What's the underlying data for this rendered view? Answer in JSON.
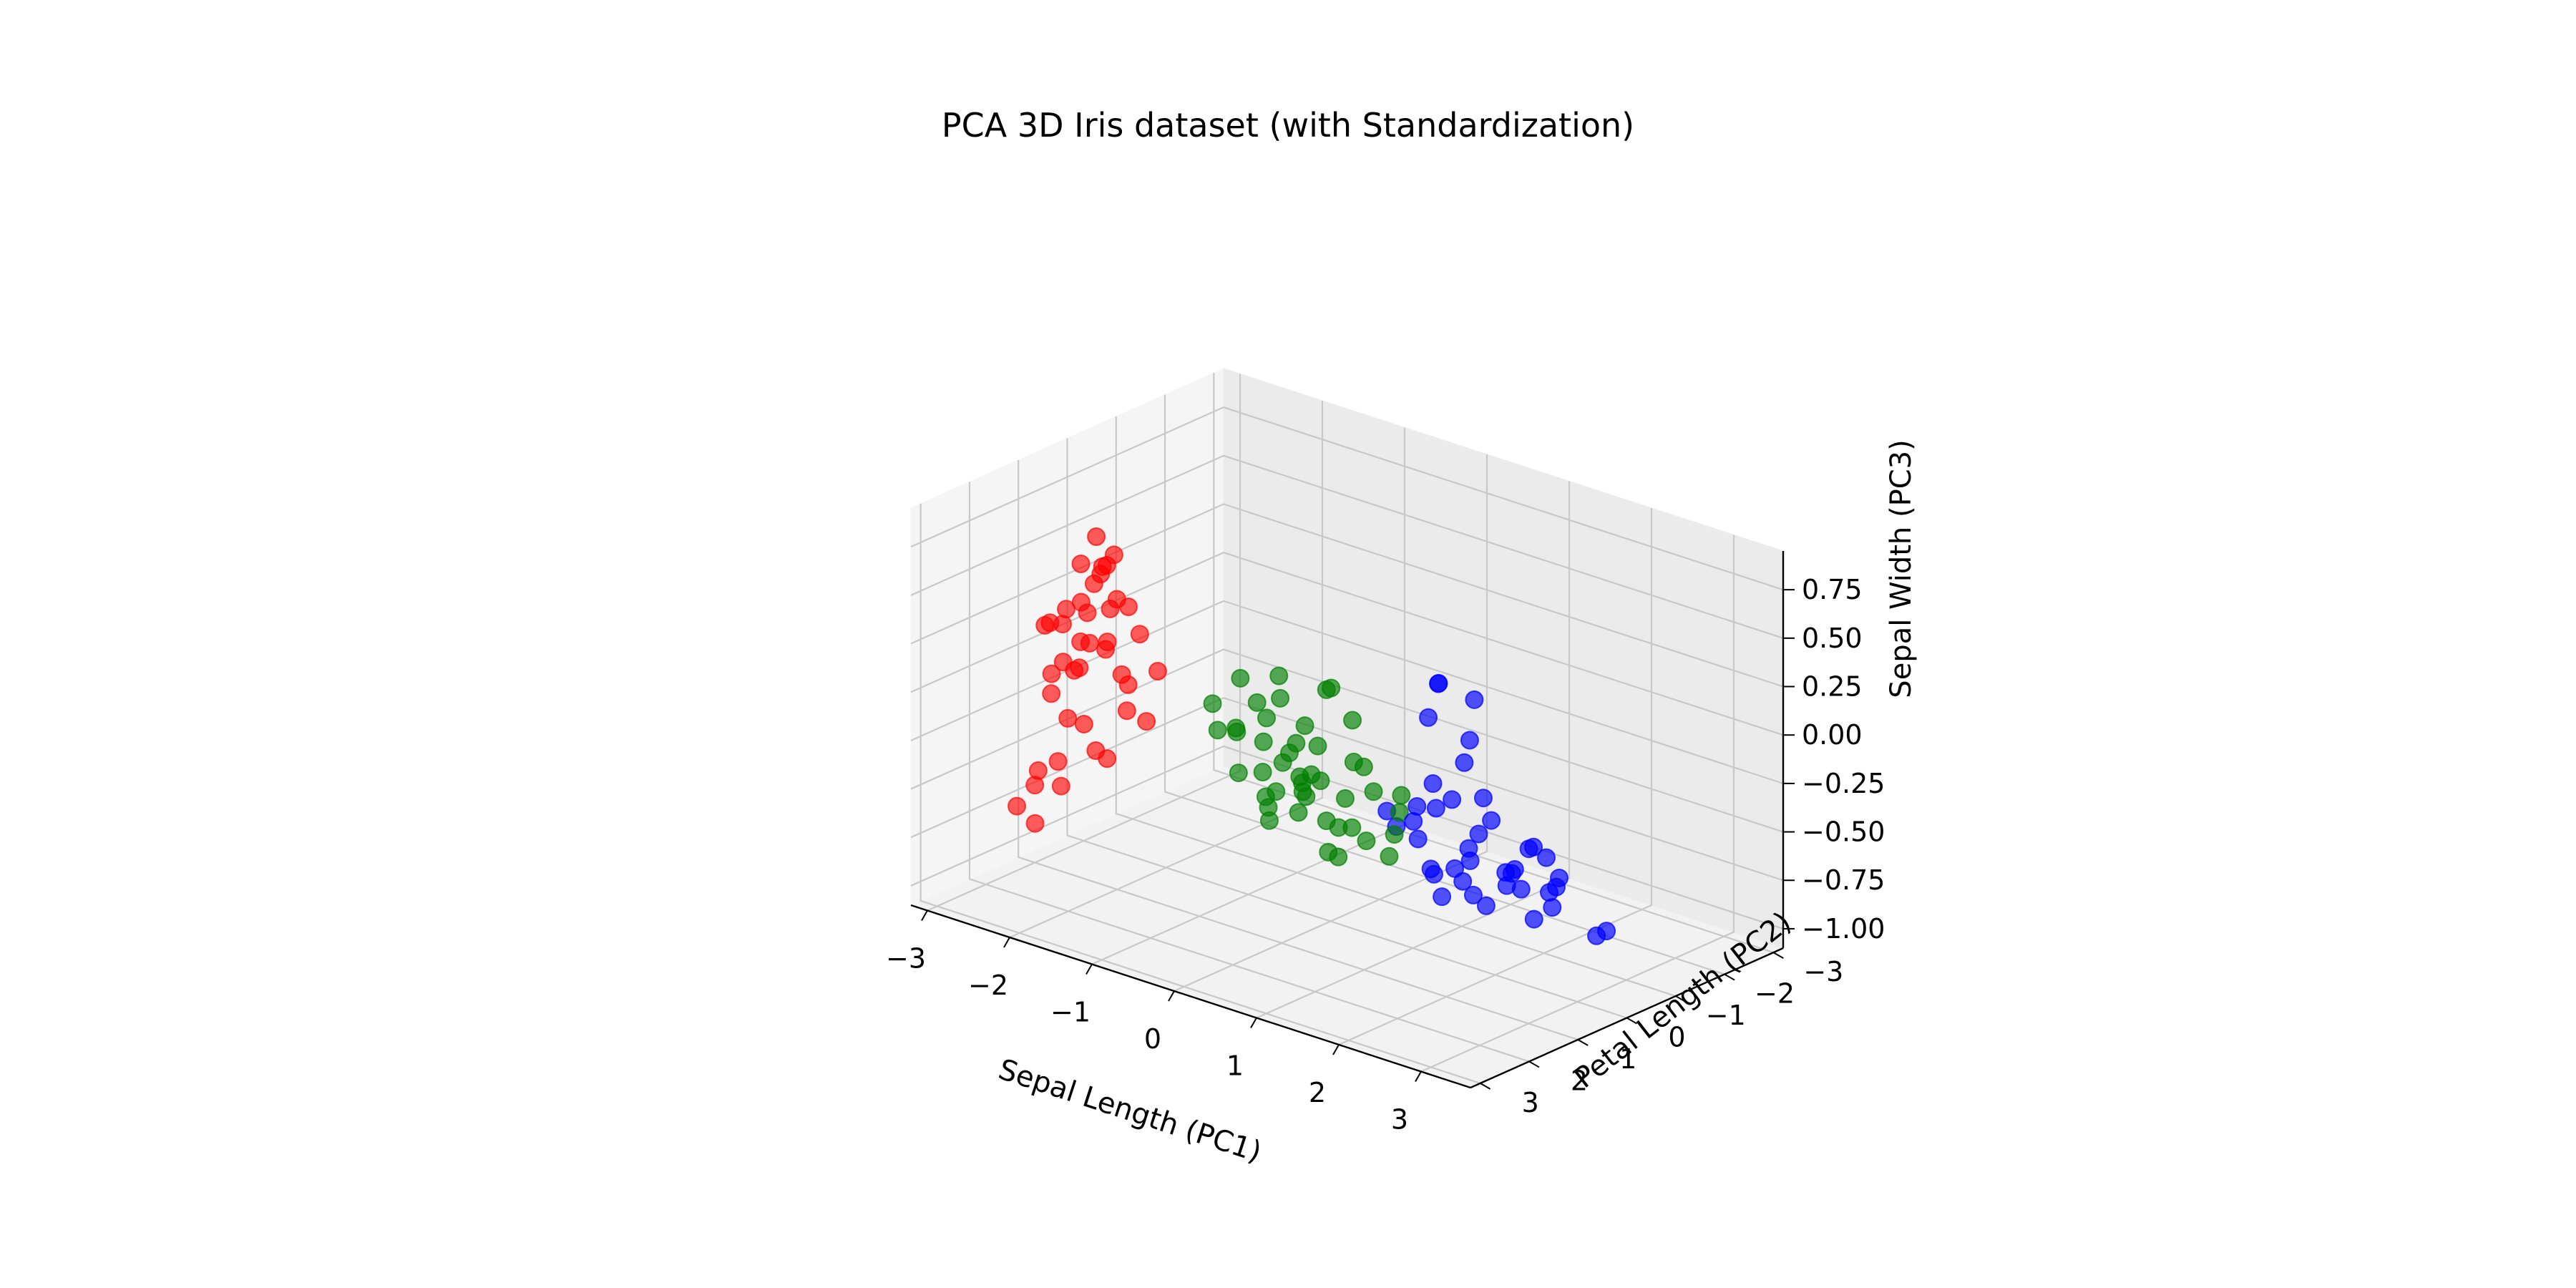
{
  "chart_data": {
    "type": "scatter",
    "title": "PCA 3D Iris dataset (with Standardization)",
    "xlabel": "Sepal Length (PC1)",
    "ylabel": "Petal Length (PC2)",
    "zlabel": "Sepal Width (PC3)",
    "xlim": [
      -3.2,
      3.6
    ],
    "ylim": [
      -3.2,
      3.2
    ],
    "zlim": [
      -1.1,
      0.95
    ],
    "xticks": [
      "−3",
      "−2",
      "−1",
      "0",
      "1",
      "2",
      "3"
    ],
    "yticks": [
      "−3",
      "−2",
      "−1",
      "0",
      "1",
      "2",
      "3"
    ],
    "zticks": [
      "0.75",
      "0.50",
      "0.25",
      "0.00",
      "−0.25",
      "−0.50",
      "−0.75",
      "−1.00"
    ],
    "grid": true,
    "legend": false,
    "colors": {
      "group1": "#ff0000",
      "group2": "#008000",
      "group3": "#0000ff"
    },
    "series": [
      {
        "color": "#ff0000",
        "points": [
          [
            -2.2,
            1.0,
            0.5
          ],
          [
            -2.4,
            0.8,
            0.4
          ],
          [
            -2.5,
            1.2,
            0.3
          ],
          [
            -2.6,
            0.6,
            0.2
          ],
          [
            -2.3,
            0.5,
            0.3
          ],
          [
            -2.2,
            0.9,
            0.1
          ],
          [
            -2.8,
            0.4,
            0.0
          ],
          [
            -2.7,
            0.7,
            -0.1
          ],
          [
            -2.5,
            0.3,
            0.2
          ],
          [
            -2.9,
            0.6,
            0.1
          ],
          [
            -2.4,
            1.1,
            0.0
          ],
          [
            -2.2,
            0.2,
            0.1
          ],
          [
            -2.0,
            0.8,
            -0.2
          ],
          [
            -2.6,
            1.0,
            -0.3
          ],
          [
            -2.3,
            0.4,
            -0.1
          ],
          [
            -2.1,
            0.6,
            0.3
          ],
          [
            -2.7,
            1.3,
            0.2
          ],
          [
            -2.4,
            0.1,
            -0.2
          ],
          [
            -2.5,
            1.5,
            0.0
          ],
          [
            -2.2,
            1.4,
            0.4
          ],
          [
            -2.6,
            0.2,
            0.4
          ],
          [
            -2.0,
            1.2,
            0.2
          ],
          [
            -2.3,
            1.6,
            0.1
          ],
          [
            -2.8,
            1.0,
            -0.2
          ],
          [
            -2.1,
            0.0,
            -0.1
          ],
          [
            -2.5,
            0.9,
            0.5
          ],
          [
            -2.0,
            0.4,
            -0.3
          ],
          [
            -2.4,
            1.7,
            0.3
          ],
          [
            -2.2,
            1.1,
            -0.4
          ],
          [
            -2.7,
            0.5,
            -0.4
          ],
          [
            -2.3,
            0.7,
            -0.5
          ],
          [
            -2.6,
            1.2,
            -0.5
          ],
          [
            -2.9,
            1.1,
            -0.6
          ],
          [
            -3.0,
            1.0,
            -0.7
          ],
          [
            -3.1,
            1.2,
            -0.8
          ],
          [
            -2.8,
            0.8,
            -0.7
          ],
          [
            -2.7,
            1.5,
            -0.8
          ],
          [
            -1.6,
            2.1,
            0.9
          ],
          [
            -1.8,
            1.9,
            0.3
          ],
          [
            -1.8,
            1.4,
            0.7
          ],
          [
            -2.0,
            1.3,
            0.6
          ]
        ]
      },
      {
        "color": "#008000",
        "points": [
          [
            0.6,
            1.0,
            0.3
          ],
          [
            0.8,
            0.9,
            0.15
          ],
          [
            0.9,
            1.6,
            0.4
          ],
          [
            0.4,
            1.2,
            0.1
          ],
          [
            0.2,
            0.6,
            -0.1
          ],
          [
            0.3,
            0.9,
            -0.2
          ],
          [
            0.5,
            1.5,
            -0.3
          ],
          [
            0.7,
            0.3,
            -0.3
          ],
          [
            0.0,
            0.5,
            -0.4
          ],
          [
            -0.3,
            0.2,
            -0.2
          ],
          [
            -0.5,
            0.0,
            -0.3
          ],
          [
            -0.7,
            -0.2,
            -0.4
          ],
          [
            -0.4,
            0.6,
            -0.5
          ],
          [
            0.2,
            -0.1,
            -0.6
          ],
          [
            0.0,
            -0.3,
            -0.5
          ],
          [
            -0.2,
            -0.5,
            -0.7
          ],
          [
            -0.6,
            0.3,
            -0.1
          ],
          [
            -0.8,
            0.5,
            0.1
          ],
          [
            -0.9,
            -0.4,
            -0.6
          ],
          [
            -1.1,
            -0.6,
            -0.8
          ],
          [
            -1.2,
            -0.1,
            -0.3
          ],
          [
            -0.9,
            0.9,
            0.0
          ],
          [
            -0.3,
            1.0,
            0.1
          ],
          [
            0.1,
            1.2,
            0.2
          ],
          [
            0.4,
            0.2,
            -0.2
          ],
          [
            0.6,
            -0.4,
            -0.5
          ],
          [
            0.3,
            -0.8,
            -0.7
          ],
          [
            0.0,
            -1.2,
            -0.9
          ],
          [
            -0.5,
            -1.0,
            -0.95
          ],
          [
            -0.8,
            -1.3,
            -1.0
          ],
          [
            -1.0,
            -1.6,
            -0.9
          ],
          [
            -1.3,
            -0.8,
            -0.6
          ],
          [
            -1.5,
            -1.2,
            -0.8
          ],
          [
            -0.1,
            0.4,
            -0.4
          ],
          [
            0.1,
            0.8,
            -0.25
          ],
          [
            -0.2,
            1.6,
            0.05
          ],
          [
            0.5,
            1.9,
            0.45
          ],
          [
            -0.4,
            0.7,
            -0.15
          ],
          [
            -0.6,
            1.3,
            -0.05
          ],
          [
            -1.0,
            0.2,
            -0.45
          ],
          [
            -0.7,
            -0.6,
            -0.55
          ],
          [
            -0.3,
            -0.3,
            -0.45
          ],
          [
            0.8,
            -0.1,
            -0.35
          ],
          [
            0.7,
            0.5,
            -0.15
          ],
          [
            -0.1,
            -0.9,
            -0.8
          ]
        ]
      },
      {
        "color": "#0000ff",
        "points": [
          [
            2.2,
            1.5,
            0.6
          ],
          [
            2.4,
            1.1,
            0.5
          ],
          [
            2.7,
            1.7,
            0.4
          ],
          [
            2.5,
            2.0,
            0.7
          ],
          [
            1.9,
            1.2,
            0.35
          ],
          [
            2.1,
            0.8,
            0.1
          ],
          [
            2.9,
            2.4,
            0.2
          ],
          [
            3.2,
            2.1,
            0.1
          ],
          [
            1.6,
            0.6,
            -0.1
          ],
          [
            1.4,
            0.2,
            -0.3
          ],
          [
            1.8,
            0.0,
            -0.4
          ],
          [
            2.0,
            -0.4,
            -0.6
          ],
          [
            1.5,
            -0.3,
            -0.55
          ],
          [
            1.1,
            -0.2,
            -0.7
          ],
          [
            0.9,
            -0.6,
            -0.8
          ],
          [
            1.2,
            -0.9,
            -0.9
          ],
          [
            0.7,
            -1.1,
            -1.0
          ],
          [
            1.0,
            -1.5,
            -1.05
          ],
          [
            0.5,
            -1.7,
            -0.95
          ],
          [
            0.3,
            -2.2,
            -1.1
          ],
          [
            1.7,
            -1.3,
            -1.0
          ],
          [
            2.1,
            -1.0,
            -0.85
          ],
          [
            2.3,
            -0.6,
            -0.7
          ],
          [
            2.6,
            -0.3,
            -0.55
          ],
          [
            2.8,
            0.3,
            -0.35
          ],
          [
            3.0,
            0.9,
            -0.2
          ],
          [
            3.3,
            1.5,
            -0.1
          ],
          [
            2.5,
            0.5,
            -0.45
          ],
          [
            2.2,
            0.1,
            -0.6
          ],
          [
            1.9,
            -0.7,
            -0.75
          ],
          [
            1.3,
            0.4,
            -0.45
          ],
          [
            1.6,
            1.0,
            -0.25
          ],
          [
            2.0,
            1.6,
            -0.05
          ],
          [
            2.4,
            -1.4,
            -1.0
          ],
          [
            2.7,
            -1.1,
            -0.9
          ],
          [
            0.8,
            0.0,
            -0.5
          ],
          [
            1.1,
            0.7,
            -0.3
          ],
          [
            1.4,
            -0.5,
            -0.65
          ],
          [
            3.4,
            2.6,
            0.3
          ],
          [
            2.9,
            1.3,
            -0.3
          ],
          [
            1.2,
            -2.6,
            -1.05
          ]
        ]
      }
    ]
  }
}
